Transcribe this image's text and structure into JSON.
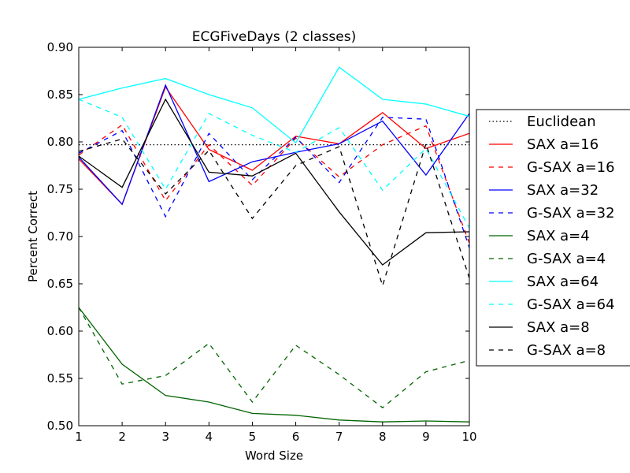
{
  "chart_data": {
    "type": "line",
    "title": "ECGFiveDays (2 classes)",
    "xlabel": "Word Size",
    "ylabel": "Percent Correct",
    "xlim": [
      1,
      10
    ],
    "ylim": [
      0.5,
      0.9
    ],
    "x_ticks": [
      "1",
      "2",
      "3",
      "4",
      "5",
      "6",
      "7",
      "8",
      "9",
      "10"
    ],
    "y_ticks": [
      "0.50",
      "0.55",
      "0.60",
      "0.65",
      "0.70",
      "0.75",
      "0.80",
      "0.85",
      "0.90"
    ],
    "grid": false,
    "legend_placement": "right, outside plot",
    "x": [
      1,
      2,
      3,
      4,
      5,
      6,
      7,
      8,
      9,
      10
    ],
    "series": [
      {
        "name": "Euclidean",
        "color": "#000000",
        "dash": "dotted",
        "values": [
          0.797,
          0.797,
          0.797,
          0.797,
          0.797,
          0.797,
          0.797,
          0.797,
          0.797,
          0.797
        ]
      },
      {
        "name": "SAX a=16",
        "color": "#ff0000",
        "dash": "solid",
        "values": [
          0.782,
          0.734,
          0.858,
          0.792,
          0.77,
          0.806,
          0.798,
          0.831,
          0.793,
          0.809
        ]
      },
      {
        "name": "G-SAX a=16",
        "color": "#ff0000",
        "dash": "dashed",
        "values": [
          0.786,
          0.818,
          0.738,
          0.797,
          0.754,
          0.804,
          0.763,
          0.797,
          0.817,
          0.693
        ]
      },
      {
        "name": "SAX a=32",
        "color": "#0000ff",
        "dash": "solid",
        "values": [
          0.784,
          0.734,
          0.86,
          0.758,
          0.779,
          0.789,
          0.798,
          0.822,
          0.765,
          0.83
        ]
      },
      {
        "name": "G-SAX a=32",
        "color": "#0000ff",
        "dash": "dashed",
        "values": [
          0.788,
          0.812,
          0.721,
          0.809,
          0.76,
          0.805,
          0.757,
          0.826,
          0.824,
          0.688
        ]
      },
      {
        "name": "SAX a=4",
        "color": "#006400",
        "dash": "solid",
        "values": [
          0.625,
          0.565,
          0.532,
          0.525,
          0.513,
          0.511,
          0.506,
          0.504,
          0.505,
          0.504
        ]
      },
      {
        "name": "G-SAX a=4",
        "color": "#006400",
        "dash": "dashed",
        "values": [
          0.625,
          0.544,
          0.553,
          0.587,
          0.525,
          0.585,
          0.554,
          0.519,
          0.557,
          0.569
        ]
      },
      {
        "name": "SAX a=64",
        "color": "#00ffff",
        "dash": "solid",
        "values": [
          0.845,
          0.857,
          0.867,
          0.85,
          0.836,
          0.799,
          0.879,
          0.845,
          0.84,
          0.827
        ]
      },
      {
        "name": "G-SAX a=64",
        "color": "#00ffff",
        "dash": "dashed",
        "values": [
          0.845,
          0.826,
          0.75,
          0.83,
          0.807,
          0.789,
          0.815,
          0.749,
          0.793,
          0.709
        ]
      },
      {
        "name": "SAX a=8",
        "color": "#000000",
        "dash": "solid",
        "values": [
          0.785,
          0.752,
          0.845,
          0.768,
          0.764,
          0.788,
          0.726,
          0.67,
          0.704,
          0.705
        ]
      },
      {
        "name": "G-SAX a=8",
        "color": "#000000",
        "dash": "dashed",
        "values": [
          0.79,
          0.803,
          0.745,
          0.791,
          0.719,
          0.775,
          0.795,
          0.648,
          0.798,
          0.656
        ]
      }
    ]
  }
}
